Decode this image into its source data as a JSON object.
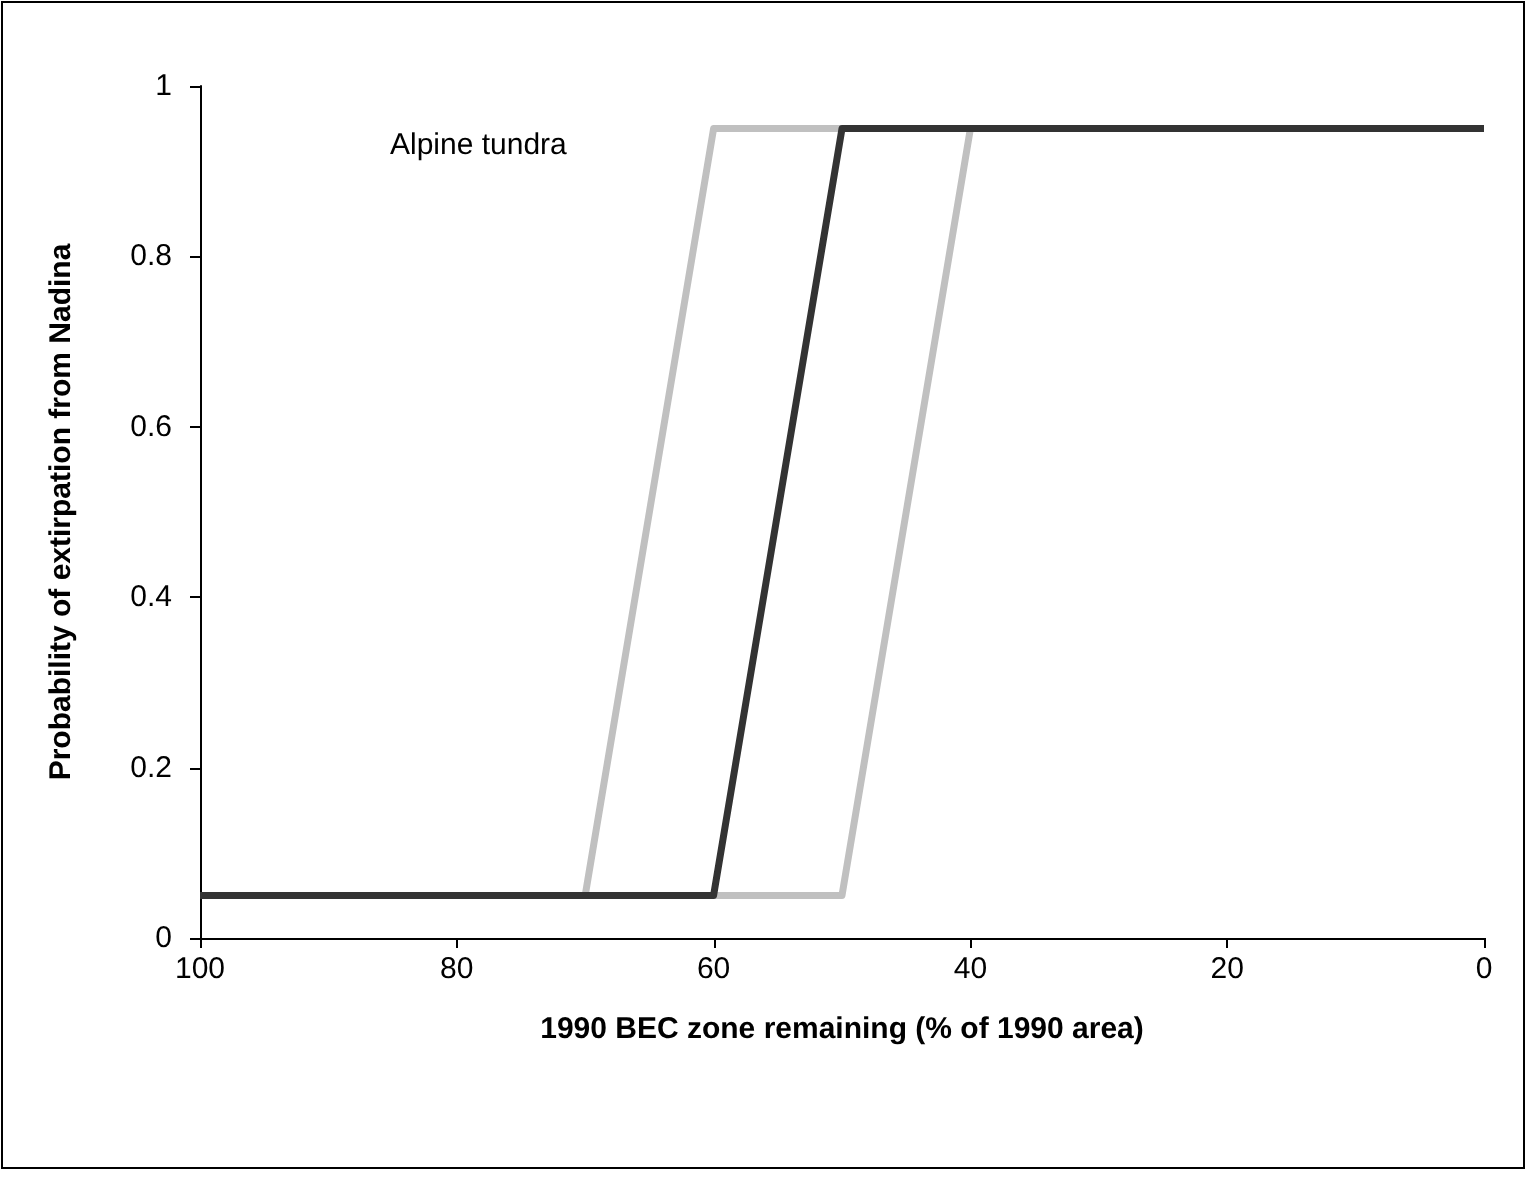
{
  "chart_data": {
    "type": "line",
    "xlabel": "1990 BEC zone remaining (% of 1990 area)",
    "ylabel": "Probability of extirpation from Nadina",
    "annotations": [
      "Alpine tundra"
    ],
    "series": [
      {
        "color": "#c0c0c0",
        "x": [
          70,
          60,
          50
        ],
        "values": [
          0.05,
          0.95,
          0.95
        ]
      },
      {
        "color": "#c0c0c0",
        "x": [
          60,
          50,
          40
        ],
        "values": [
          0.05,
          0.05,
          0.95
        ]
      },
      {
        "color": "#333333",
        "x": [
          100,
          60,
          50,
          0
        ],
        "values": [
          0.05,
          0.05,
          0.95,
          0.95
        ]
      }
    ],
    "xlim": [
      100,
      0
    ],
    "xticks": [
      100,
      80,
      60,
      40,
      20,
      0
    ],
    "ylim": [
      0,
      1
    ],
    "yticks": [
      0,
      0.2,
      0.4,
      0.6,
      0.8,
      1
    ],
    "grid": false,
    "marker": "none",
    "line_style": "solid"
  }
}
